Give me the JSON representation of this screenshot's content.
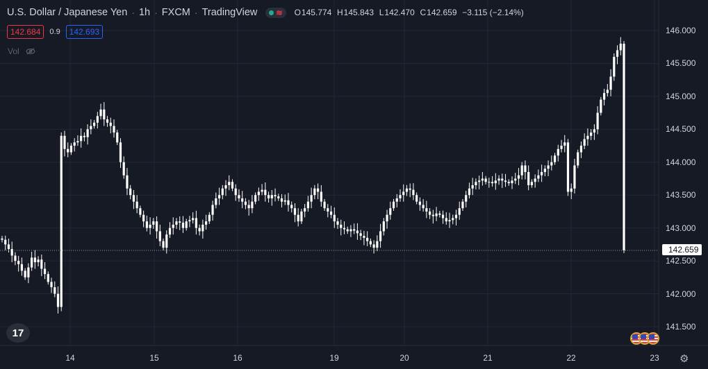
{
  "header": {
    "symbol": "U.S. Dollar / Japanese Yen",
    "interval": "1h",
    "exchange": "FXCM",
    "source": "TradingView",
    "open_label": "O",
    "open": "145.774",
    "high_label": "H",
    "high": "145.843",
    "low_label": "L",
    "low": "142.470",
    "close_label": "C",
    "close": "142.659",
    "change": "−3.115 (−2.14%)"
  },
  "trade": {
    "sell_price": "142.684",
    "spread": "0.9",
    "buy_price": "142.693"
  },
  "volume": {
    "label": "Vol"
  },
  "last_price_tag": "142.659",
  "colors": {
    "background": "#161a25",
    "grid": "#232734",
    "candle": "#ffffff",
    "sell": "#f23645",
    "buy": "#2962ff"
  },
  "icons": {
    "logo": "tradingview-logo-icon",
    "settings": "gear-icon",
    "hidden": "eye-crossed-icon",
    "flags": "us-flag-icon"
  },
  "chart_data": {
    "type": "candlestick",
    "title": "U.S. Dollar / Japanese Yen · 1h · FXCM",
    "y_ticks": [
      "146.000",
      "145.500",
      "145.000",
      "144.500",
      "144.000",
      "143.500",
      "143.000",
      "142.500",
      "142.000",
      "141.500"
    ],
    "x_ticks": [
      "14",
      "15",
      "16",
      "19",
      "20",
      "21",
      "22",
      "23"
    ],
    "ylim": [
      141.3,
      146.2
    ],
    "grid": true,
    "last_price": 142.659,
    "series": [
      {
        "comment": "approximate hourly closes read from the chart",
        "close": [
          142.82,
          142.75,
          142.68,
          142.58,
          142.5,
          142.45,
          142.35,
          142.25,
          142.4,
          142.55,
          142.48,
          142.52,
          142.38,
          142.3,
          142.18,
          142.1,
          142.0,
          141.8,
          144.4,
          144.2,
          144.15,
          144.25,
          144.3,
          144.32,
          144.4,
          144.38,
          144.5,
          144.55,
          144.6,
          144.7,
          144.8,
          144.65,
          144.6,
          144.55,
          144.45,
          144.3,
          144.0,
          143.8,
          143.6,
          143.5,
          143.4,
          143.3,
          143.2,
          143.1,
          143.0,
          143.05,
          143.1,
          142.95,
          142.8,
          142.7,
          142.9,
          143.0,
          143.05,
          143.1,
          143.08,
          143.0,
          143.1,
          143.12,
          143.15,
          143.0,
          142.95,
          143.05,
          143.1,
          143.2,
          143.35,
          143.45,
          143.5,
          143.6,
          143.65,
          143.7,
          143.6,
          143.5,
          143.45,
          143.4,
          143.35,
          143.3,
          143.4,
          143.5,
          143.55,
          143.58,
          143.5,
          143.45,
          143.5,
          143.48,
          143.45,
          143.4,
          143.42,
          143.35,
          143.3,
          143.2,
          143.1,
          143.25,
          143.3,
          143.4,
          143.5,
          143.6,
          143.55,
          143.4,
          143.3,
          143.25,
          143.2,
          143.1,
          143.05,
          143.0,
          142.98,
          142.95,
          142.98,
          142.96,
          142.92,
          142.88,
          142.85,
          142.8,
          142.75,
          142.7,
          142.8,
          142.95,
          143.1,
          143.2,
          143.3,
          143.4,
          143.45,
          143.5,
          143.55,
          143.6,
          143.58,
          143.5,
          143.4,
          143.35,
          143.3,
          143.25,
          143.2,
          143.18,
          143.22,
          143.2,
          143.15,
          143.1,
          143.12,
          143.15,
          143.2,
          143.3,
          143.4,
          143.5,
          143.6,
          143.65,
          143.7,
          143.72,
          143.75,
          143.7,
          143.7,
          143.68,
          143.72,
          143.75,
          143.72,
          143.7,
          143.68,
          143.72,
          143.75,
          143.8,
          143.95,
          143.85,
          143.65,
          143.7,
          143.75,
          143.8,
          143.85,
          143.9,
          143.95,
          144.0,
          144.1,
          144.2,
          144.25,
          144.3,
          143.55,
          143.6,
          143.95,
          144.15,
          144.25,
          144.35,
          144.4,
          144.45,
          144.5,
          144.75,
          144.95,
          145.05,
          145.1,
          145.3,
          145.6,
          145.7,
          145.8,
          142.659
        ]
      }
    ]
  }
}
